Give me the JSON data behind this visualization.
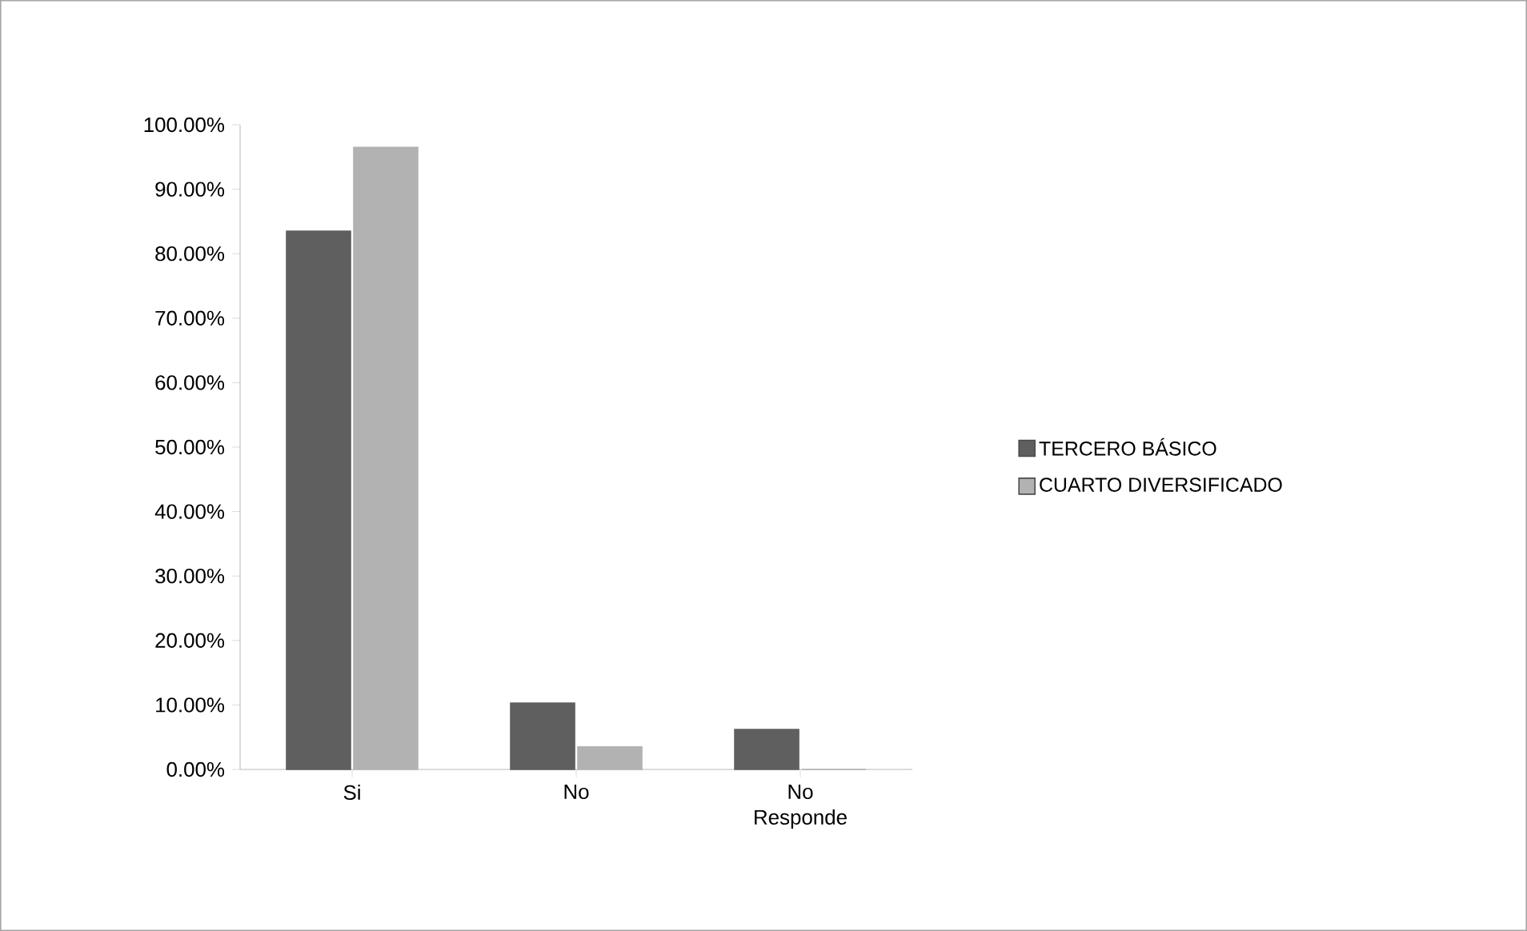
{
  "chart_data": {
    "type": "bar",
    "categories": [
      "Si",
      "No",
      "No Responde"
    ],
    "series": [
      {
        "name": "TERCERO BÁSICO",
        "color": "#5f5f5f",
        "values": [
          83.5,
          10.3,
          6.2
        ]
      },
      {
        "name": "CUARTO DIVERSIFICADO",
        "color": "#b2b2b2",
        "values": [
          96.5,
          3.5,
          0
        ]
      }
    ],
    "ylim": [
      0,
      100
    ],
    "yticks": [
      {
        "value": 0,
        "label": "0.00%"
      },
      {
        "value": 10,
        "label": "10.00%"
      },
      {
        "value": 20,
        "label": "20.00%"
      },
      {
        "value": 30,
        "label": "30.00%"
      },
      {
        "value": 40,
        "label": "40.00%"
      },
      {
        "value": 50,
        "label": "50.00%"
      },
      {
        "value": 60,
        "label": "60.00%"
      },
      {
        "value": 70,
        "label": "70.00%"
      },
      {
        "value": 80,
        "label": "80.00%"
      },
      {
        "value": 90,
        "label": "90.00%"
      },
      {
        "value": 100,
        "label": "100.00%"
      }
    ],
    "legend": "right"
  }
}
